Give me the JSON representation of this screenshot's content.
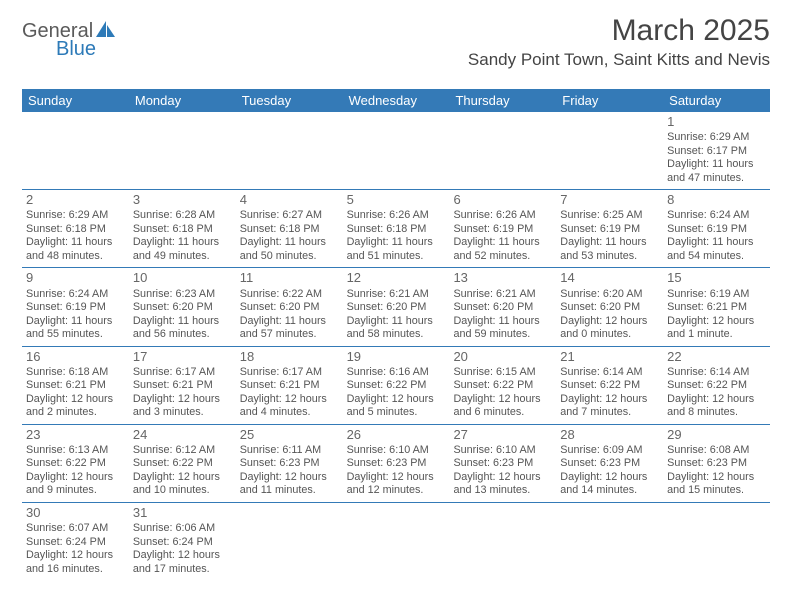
{
  "logo": {
    "part1": "General",
    "part2": "Blue",
    "sail_color": "#2d7ab8"
  },
  "title": "March 2025",
  "location": "Sandy Point Town, Saint Kitts and Nevis",
  "colors": {
    "header_bg": "#347ab7",
    "header_text": "#ffffff",
    "row_border": "#347ab7",
    "text": "#555555",
    "daynum": "#666666"
  },
  "day_headers": [
    "Sunday",
    "Monday",
    "Tuesday",
    "Wednesday",
    "Thursday",
    "Friday",
    "Saturday"
  ],
  "weeks": [
    [
      null,
      null,
      null,
      null,
      null,
      null,
      {
        "n": "1",
        "sunrise": "Sunrise: 6:29 AM",
        "sunset": "Sunset: 6:17 PM",
        "daylight": "Daylight: 11 hours and 47 minutes."
      }
    ],
    [
      {
        "n": "2",
        "sunrise": "Sunrise: 6:29 AM",
        "sunset": "Sunset: 6:18 PM",
        "daylight": "Daylight: 11 hours and 48 minutes."
      },
      {
        "n": "3",
        "sunrise": "Sunrise: 6:28 AM",
        "sunset": "Sunset: 6:18 PM",
        "daylight": "Daylight: 11 hours and 49 minutes."
      },
      {
        "n": "4",
        "sunrise": "Sunrise: 6:27 AM",
        "sunset": "Sunset: 6:18 PM",
        "daylight": "Daylight: 11 hours and 50 minutes."
      },
      {
        "n": "5",
        "sunrise": "Sunrise: 6:26 AM",
        "sunset": "Sunset: 6:18 PM",
        "daylight": "Daylight: 11 hours and 51 minutes."
      },
      {
        "n": "6",
        "sunrise": "Sunrise: 6:26 AM",
        "sunset": "Sunset: 6:19 PM",
        "daylight": "Daylight: 11 hours and 52 minutes."
      },
      {
        "n": "7",
        "sunrise": "Sunrise: 6:25 AM",
        "sunset": "Sunset: 6:19 PM",
        "daylight": "Daylight: 11 hours and 53 minutes."
      },
      {
        "n": "8",
        "sunrise": "Sunrise: 6:24 AM",
        "sunset": "Sunset: 6:19 PM",
        "daylight": "Daylight: 11 hours and 54 minutes."
      }
    ],
    [
      {
        "n": "9",
        "sunrise": "Sunrise: 6:24 AM",
        "sunset": "Sunset: 6:19 PM",
        "daylight": "Daylight: 11 hours and 55 minutes."
      },
      {
        "n": "10",
        "sunrise": "Sunrise: 6:23 AM",
        "sunset": "Sunset: 6:20 PM",
        "daylight": "Daylight: 11 hours and 56 minutes."
      },
      {
        "n": "11",
        "sunrise": "Sunrise: 6:22 AM",
        "sunset": "Sunset: 6:20 PM",
        "daylight": "Daylight: 11 hours and 57 minutes."
      },
      {
        "n": "12",
        "sunrise": "Sunrise: 6:21 AM",
        "sunset": "Sunset: 6:20 PM",
        "daylight": "Daylight: 11 hours and 58 minutes."
      },
      {
        "n": "13",
        "sunrise": "Sunrise: 6:21 AM",
        "sunset": "Sunset: 6:20 PM",
        "daylight": "Daylight: 11 hours and 59 minutes."
      },
      {
        "n": "14",
        "sunrise": "Sunrise: 6:20 AM",
        "sunset": "Sunset: 6:20 PM",
        "daylight": "Daylight: 12 hours and 0 minutes."
      },
      {
        "n": "15",
        "sunrise": "Sunrise: 6:19 AM",
        "sunset": "Sunset: 6:21 PM",
        "daylight": "Daylight: 12 hours and 1 minute."
      }
    ],
    [
      {
        "n": "16",
        "sunrise": "Sunrise: 6:18 AM",
        "sunset": "Sunset: 6:21 PM",
        "daylight": "Daylight: 12 hours and 2 minutes."
      },
      {
        "n": "17",
        "sunrise": "Sunrise: 6:17 AM",
        "sunset": "Sunset: 6:21 PM",
        "daylight": "Daylight: 12 hours and 3 minutes."
      },
      {
        "n": "18",
        "sunrise": "Sunrise: 6:17 AM",
        "sunset": "Sunset: 6:21 PM",
        "daylight": "Daylight: 12 hours and 4 minutes."
      },
      {
        "n": "19",
        "sunrise": "Sunrise: 6:16 AM",
        "sunset": "Sunset: 6:22 PM",
        "daylight": "Daylight: 12 hours and 5 minutes."
      },
      {
        "n": "20",
        "sunrise": "Sunrise: 6:15 AM",
        "sunset": "Sunset: 6:22 PM",
        "daylight": "Daylight: 12 hours and 6 minutes."
      },
      {
        "n": "21",
        "sunrise": "Sunrise: 6:14 AM",
        "sunset": "Sunset: 6:22 PM",
        "daylight": "Daylight: 12 hours and 7 minutes."
      },
      {
        "n": "22",
        "sunrise": "Sunrise: 6:14 AM",
        "sunset": "Sunset: 6:22 PM",
        "daylight": "Daylight: 12 hours and 8 minutes."
      }
    ],
    [
      {
        "n": "23",
        "sunrise": "Sunrise: 6:13 AM",
        "sunset": "Sunset: 6:22 PM",
        "daylight": "Daylight: 12 hours and 9 minutes."
      },
      {
        "n": "24",
        "sunrise": "Sunrise: 6:12 AM",
        "sunset": "Sunset: 6:22 PM",
        "daylight": "Daylight: 12 hours and 10 minutes."
      },
      {
        "n": "25",
        "sunrise": "Sunrise: 6:11 AM",
        "sunset": "Sunset: 6:23 PM",
        "daylight": "Daylight: 12 hours and 11 minutes."
      },
      {
        "n": "26",
        "sunrise": "Sunrise: 6:10 AM",
        "sunset": "Sunset: 6:23 PM",
        "daylight": "Daylight: 12 hours and 12 minutes."
      },
      {
        "n": "27",
        "sunrise": "Sunrise: 6:10 AM",
        "sunset": "Sunset: 6:23 PM",
        "daylight": "Daylight: 12 hours and 13 minutes."
      },
      {
        "n": "28",
        "sunrise": "Sunrise: 6:09 AM",
        "sunset": "Sunset: 6:23 PM",
        "daylight": "Daylight: 12 hours and 14 minutes."
      },
      {
        "n": "29",
        "sunrise": "Sunrise: 6:08 AM",
        "sunset": "Sunset: 6:23 PM",
        "daylight": "Daylight: 12 hours and 15 minutes."
      }
    ],
    [
      {
        "n": "30",
        "sunrise": "Sunrise: 6:07 AM",
        "sunset": "Sunset: 6:24 PM",
        "daylight": "Daylight: 12 hours and 16 minutes."
      },
      {
        "n": "31",
        "sunrise": "Sunrise: 6:06 AM",
        "sunset": "Sunset: 6:24 PM",
        "daylight": "Daylight: 12 hours and 17 minutes."
      },
      null,
      null,
      null,
      null,
      null
    ]
  ]
}
